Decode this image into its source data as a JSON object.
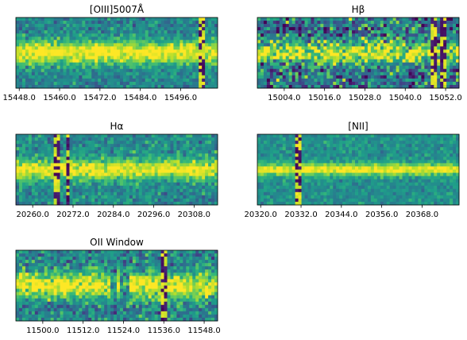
{
  "chart_data": [
    {
      "type": "heatmap",
      "title": "[OIII]5007Å",
      "xticks": [
        "15448.0",
        "15460.0",
        "15472.0",
        "15484.0",
        "15496.0"
      ],
      "xlim": [
        15447.0,
        15507.0
      ],
      "colormap": "viridis",
      "band": "bright horizontal emission band across full width",
      "stripes": [
        15502.5
      ]
    },
    {
      "type": "heatmap",
      "title": "Hβ",
      "xticks": [
        "15004.0",
        "15016.0",
        "15028.0",
        "15040.0",
        "15052.0"
      ],
      "xlim": [
        14996.0,
        15056.0
      ],
      "colormap": "viridis",
      "band": "bright horizontal emission band across full width",
      "stripes": [
        15048.5,
        15051.5
      ]
    },
    {
      "type": "heatmap",
      "title": "Hα",
      "xticks": [
        "20260.0",
        "20272.0",
        "20284.0",
        "20296.0",
        "20308.0"
      ],
      "xlim": [
        20255.0,
        20315.0
      ],
      "colormap": "viridis",
      "band": "bright horizontal emission band across full width",
      "stripes": [
        20267.5,
        20270.5
      ]
    },
    {
      "type": "heatmap",
      "title": "[NII]",
      "xticks": [
        "20320.0",
        "20332.0",
        "20344.0",
        "20356.0",
        "20368.0"
      ],
      "xlim": [
        20319.0,
        20379.0
      ],
      "colormap": "viridis",
      "band": "thin bright horizontal band",
      "stripes": [
        20331.5
      ]
    },
    {
      "type": "heatmap",
      "title": "OII Window",
      "xticks": [
        "11500.0",
        "11512.0",
        "11524.0",
        "11536.0",
        "11548.0"
      ],
      "xlim": [
        11492.0,
        11552.0
      ],
      "colormap": "viridis",
      "band": "bright horizontal band with gaps",
      "stripes": [
        11536.0
      ]
    }
  ]
}
